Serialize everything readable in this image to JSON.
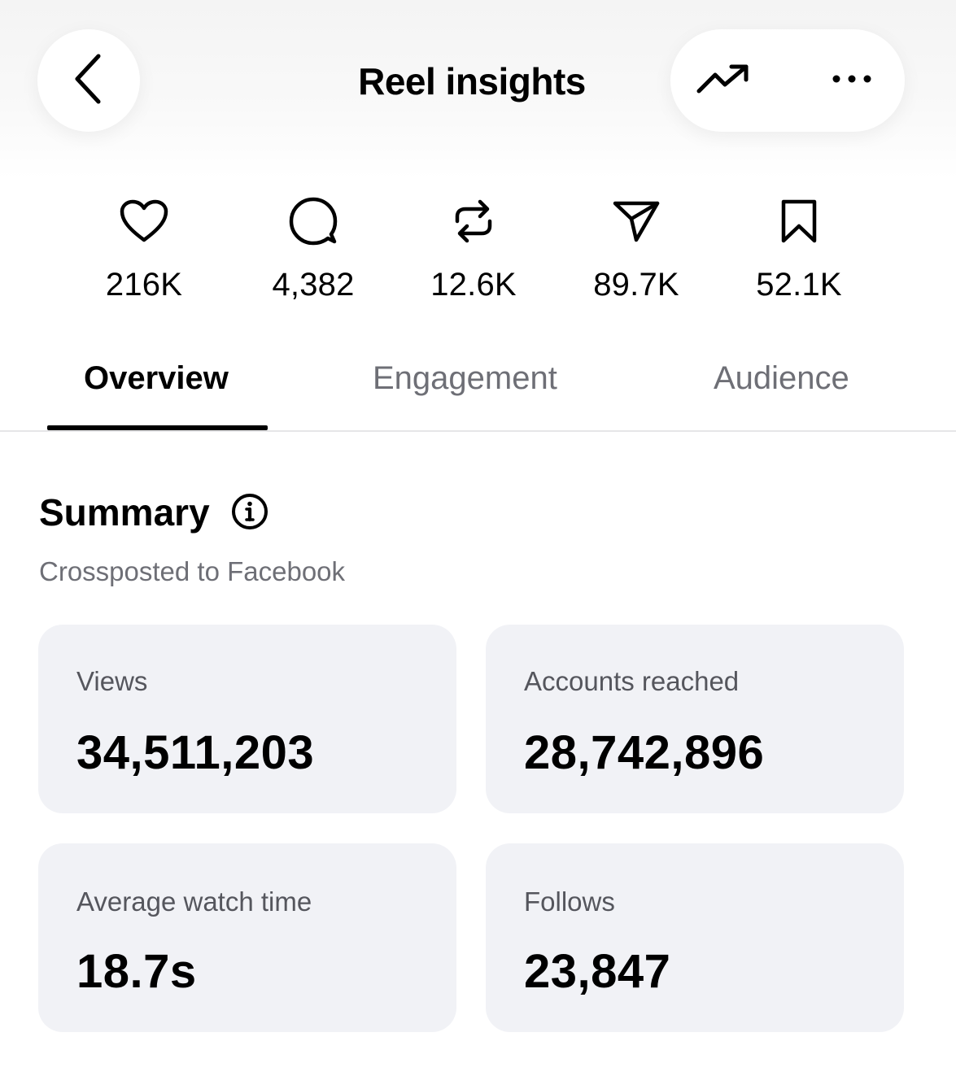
{
  "header": {
    "title": "Reel insights",
    "icons": {
      "back": "chevron-left-icon",
      "trend": "trending-up-icon",
      "more": "more-horizontal-icon"
    }
  },
  "stats": [
    {
      "icon": "heart-icon",
      "value": "216K"
    },
    {
      "icon": "comment-icon",
      "value": "4,382"
    },
    {
      "icon": "repost-icon",
      "value": "12.6K"
    },
    {
      "icon": "share-icon",
      "value": "89.7K"
    },
    {
      "icon": "bookmark-icon",
      "value": "52.1K"
    }
  ],
  "tabs": [
    {
      "label": "Overview",
      "active": true
    },
    {
      "label": "Engagement",
      "active": false
    },
    {
      "label": "Audience",
      "active": false
    }
  ],
  "summary": {
    "title": "Summary",
    "info_icon": "info-icon",
    "subtitle": "Crossposted to Facebook",
    "cards": [
      {
        "label": "Views",
        "value": "34,511,203"
      },
      {
        "label": "Accounts reached",
        "value": "28,742,896"
      },
      {
        "label": "Average watch time",
        "value": "18.7s"
      },
      {
        "label": "Follows",
        "value": "23,847"
      }
    ]
  },
  "colors": {
    "text_primary": "#000000",
    "text_secondary": "#6e6f76",
    "card_bg": "#f1f2f6",
    "divider": "#e6e6e8"
  }
}
